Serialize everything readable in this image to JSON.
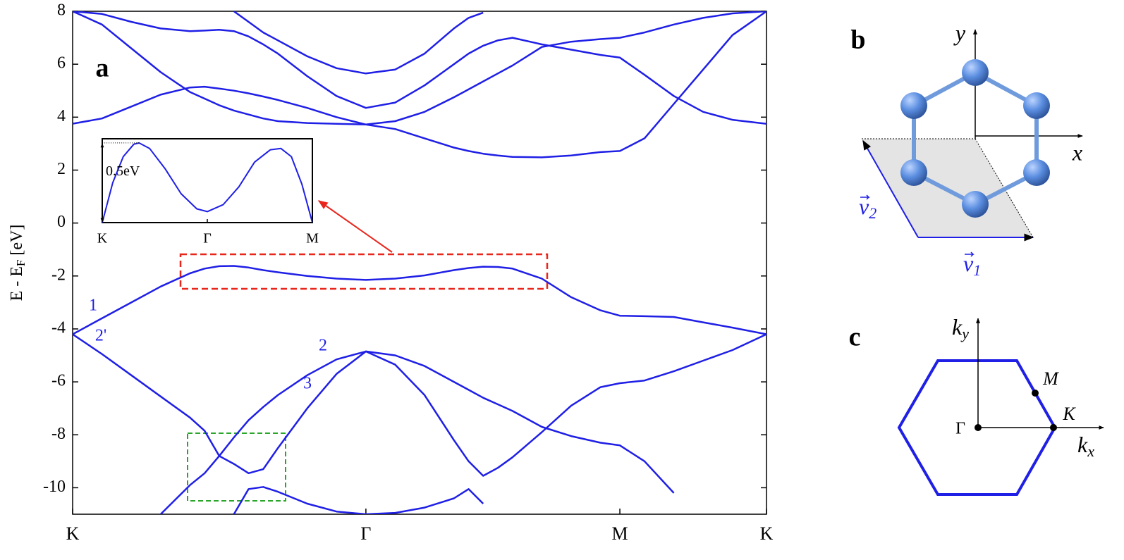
{
  "chart_data": [
    {
      "type": "line",
      "panel_label": "a",
      "ylabel": [
        "E - E",
        "F",
        "[eV]"
      ],
      "color": "#1f1fe6",
      "annotations": [
        "1",
        "2'",
        "2",
        "3"
      ],
      "xlim": [
        0,
        2.366
      ],
      "ylim": [
        -11,
        8
      ],
      "xticks": [
        {
          "value": 0,
          "label": "K"
        },
        {
          "value": 1,
          "label": "Γ"
        },
        {
          "value": 1.866,
          "label": "M"
        },
        {
          "value": 2.366,
          "label": "K"
        }
      ],
      "yticks": [
        -10,
        -8,
        -6,
        -4,
        -2,
        0,
        2,
        4,
        6,
        8
      ],
      "x": [
        0,
        0.1,
        0.2,
        0.3,
        0.4,
        0.45,
        0.5,
        0.55,
        0.6,
        0.65,
        0.7,
        0.8,
        0.9,
        1.0,
        1.1,
        1.2,
        1.3,
        1.35,
        1.4,
        1.45,
        1.5,
        1.6,
        1.7,
        1.8,
        1.866,
        1.95,
        2.05,
        2.15,
        2.25,
        2.366
      ],
      "series": [
        {
          "values": [
            -4.2,
            -3.6,
            -3.0,
            -2.4,
            -1.9,
            -1.72,
            -1.63,
            -1.62,
            -1.68,
            -1.78,
            -1.86,
            -2.0,
            -2.1,
            -2.15,
            -2.1,
            -1.98,
            -1.78,
            -1.7,
            -1.65,
            -1.66,
            -1.72,
            -2.1,
            -2.8,
            -3.3,
            -3.5,
            -3.52,
            -3.55,
            -3.75,
            -3.95,
            -4.2
          ]
        },
        {
          "values": [
            -4.2,
            -4.95,
            -5.75,
            -6.55,
            -7.35,
            -7.85,
            -8.8,
            -9.1,
            -9.45,
            -9.3,
            -8.5,
            -7.0,
            -5.7,
            -4.85,
            -5.35,
            -6.5,
            -8.2,
            -9.0,
            -9.55,
            -9.25,
            -8.85,
            -7.9,
            -6.9,
            -6.2,
            -6.05,
            -5.95,
            -5.6,
            -5.2,
            -4.8,
            -4.2
          ]
        },
        {
          "values": [
            null,
            null,
            null,
            -11.0,
            -9.9,
            -9.45,
            -8.8,
            -8.1,
            -7.45,
            -6.95,
            -6.5,
            -5.75,
            -5.15,
            -4.85,
            -5.0,
            -5.4,
            -6.0,
            -6.3,
            -6.6,
            -6.85,
            -7.1,
            -7.7,
            -8.05,
            -8.3,
            -8.4,
            -9.0,
            -10.2,
            null,
            null,
            null
          ]
        },
        {
          "values": [
            null,
            null,
            null,
            null,
            null,
            null,
            null,
            -11.0,
            -10.05,
            -9.97,
            -10.15,
            -10.6,
            -10.9,
            -11.0,
            -10.95,
            -10.75,
            -10.4,
            -10.05,
            -10.6,
            null,
            null,
            null,
            null,
            null,
            null,
            null,
            null,
            null,
            null,
            null
          ]
        },
        {
          "values": [
            3.75,
            3.95,
            4.4,
            4.85,
            5.12,
            5.15,
            5.08,
            5.0,
            4.9,
            4.78,
            4.65,
            4.35,
            4.0,
            3.72,
            3.55,
            3.2,
            2.85,
            2.72,
            2.62,
            2.55,
            2.5,
            2.48,
            2.55,
            2.68,
            2.72,
            3.2,
            4.5,
            5.8,
            7.1,
            8.0
          ]
        },
        {
          "values": [
            8.0,
            7.5,
            6.6,
            5.7,
            4.95,
            4.7,
            4.45,
            4.25,
            4.1,
            3.95,
            3.85,
            3.78,
            3.75,
            3.72,
            3.85,
            4.2,
            4.75,
            5.05,
            5.35,
            5.65,
            5.95,
            6.65,
            6.85,
            6.95,
            7.0,
            7.2,
            7.5,
            7.75,
            7.92,
            8.0
          ]
        },
        {
          "values": [
            8.0,
            7.9,
            7.6,
            7.35,
            7.25,
            7.27,
            7.3,
            7.25,
            7.05,
            6.75,
            6.4,
            5.55,
            4.8,
            4.35,
            4.55,
            5.2,
            6.0,
            6.4,
            6.7,
            6.9,
            7.0,
            6.75,
            6.55,
            6.35,
            6.25,
            5.6,
            4.8,
            4.2,
            3.9,
            3.75
          ]
        },
        {
          "values": [
            null,
            null,
            null,
            null,
            null,
            null,
            null,
            8.0,
            7.6,
            7.2,
            6.9,
            6.3,
            5.85,
            5.65,
            5.8,
            6.4,
            7.35,
            7.75,
            7.95,
            null,
            null,
            null,
            null,
            null,
            null,
            null,
            null,
            null,
            null,
            null
          ]
        }
      ]
    },
    {
      "type": "line",
      "color": "#1f1fe6",
      "annotation": "0.5eV",
      "xlim": [
        0,
        2
      ],
      "ylim": [
        -2.23,
        -1.62
      ],
      "xticks": [
        {
          "value": 0,
          "label": "K"
        },
        {
          "value": 1,
          "label": "Γ"
        },
        {
          "value": 2,
          "label": "M"
        }
      ],
      "x": [
        0,
        0.1,
        0.2,
        0.3,
        0.35,
        0.45,
        0.6,
        0.75,
        0.9,
        1.0,
        1.15,
        1.3,
        1.45,
        1.6,
        1.7,
        1.8,
        1.9,
        2.0
      ],
      "series": [
        {
          "values": [
            -2.23,
            -1.94,
            -1.75,
            -1.66,
            -1.65,
            -1.69,
            -1.84,
            -2.02,
            -2.13,
            -2.15,
            -2.1,
            -1.97,
            -1.79,
            -1.7,
            -1.69,
            -1.75,
            -1.95,
            -2.23
          ]
        }
      ]
    }
  ],
  "panel_b": {
    "label": "b",
    "x_axis": "x",
    "y_axis": "y",
    "v1": [
      "v",
      "1"
    ],
    "v2": [
      "v",
      "2"
    ]
  },
  "panel_c": {
    "label": "c",
    "kx": [
      "k",
      "x"
    ],
    "ky": [
      "k",
      "y"
    ],
    "gamma": "Γ",
    "m": "M",
    "k": "K"
  }
}
